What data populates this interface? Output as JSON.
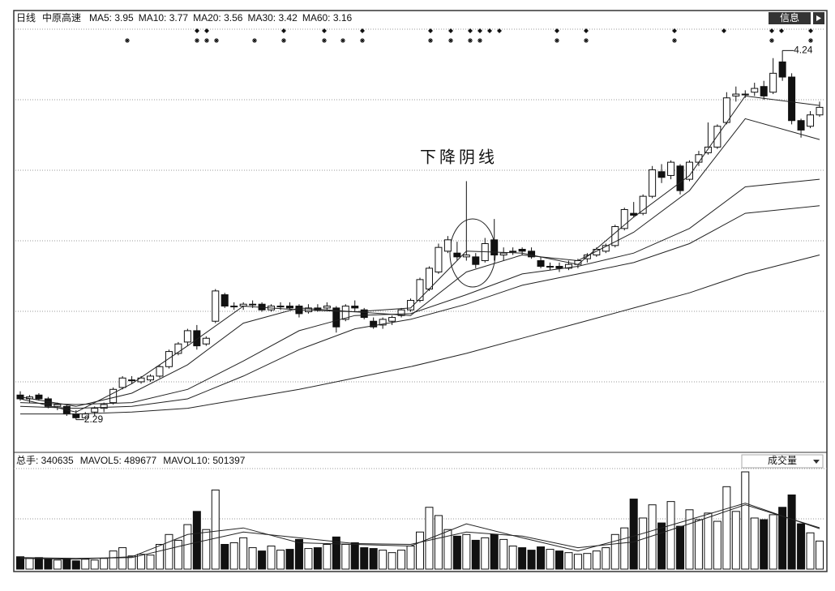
{
  "header": {
    "period": "日线",
    "stock": "中原高速",
    "ma_labels": [
      "MA5: 3.95",
      "MA10: 3.77",
      "MA20: 3.56",
      "MA30: 3.42",
      "MA60: 3.16"
    ]
  },
  "button": "信息",
  "chart_data": [
    {
      "type": "candlestick",
      "ylim": [
        2.13,
        4.37
      ],
      "max_label": "4.24",
      "min_label": "2.29",
      "annotation": "下降阴线",
      "candles": [
        [
          2.42,
          2.44,
          2.39,
          2.4
        ],
        [
          2.4,
          2.42,
          2.38,
          2.41
        ],
        [
          2.42,
          2.43,
          2.39,
          2.4
        ],
        [
          2.4,
          2.41,
          2.35,
          2.36
        ],
        [
          2.36,
          2.38,
          2.34,
          2.37
        ],
        [
          2.36,
          2.37,
          2.31,
          2.32
        ],
        [
          2.32,
          2.34,
          2.29,
          2.3
        ],
        [
          2.3,
          2.33,
          2.29,
          2.32
        ],
        [
          2.33,
          2.36,
          2.31,
          2.35
        ],
        [
          2.35,
          2.38,
          2.33,
          2.37
        ],
        [
          2.38,
          2.46,
          2.37,
          2.45
        ],
        [
          2.46,
          2.52,
          2.45,
          2.51
        ],
        [
          2.5,
          2.52,
          2.48,
          2.5
        ],
        [
          2.49,
          2.52,
          2.48,
          2.51
        ],
        [
          2.5,
          2.53,
          2.49,
          2.52
        ],
        [
          2.52,
          2.58,
          2.51,
          2.57
        ],
        [
          2.57,
          2.66,
          2.56,
          2.65
        ],
        [
          2.64,
          2.7,
          2.63,
          2.69
        ],
        [
          2.7,
          2.77,
          2.68,
          2.76
        ],
        [
          2.76,
          2.79,
          2.66,
          2.68
        ],
        [
          2.69,
          2.73,
          2.68,
          2.72
        ],
        [
          2.81,
          2.98,
          2.8,
          2.97
        ],
        [
          2.95,
          2.96,
          2.88,
          2.89
        ],
        [
          2.89,
          2.91,
          2.87,
          2.89
        ],
        [
          2.89,
          2.91,
          2.87,
          2.9
        ],
        [
          2.9,
          2.92,
          2.88,
          2.9
        ],
        [
          2.9,
          2.91,
          2.86,
          2.87
        ],
        [
          2.87,
          2.9,
          2.86,
          2.89
        ],
        [
          2.89,
          2.91,
          2.87,
          2.89
        ],
        [
          2.89,
          2.91,
          2.87,
          2.88
        ],
        [
          2.89,
          2.9,
          2.83,
          2.85
        ],
        [
          2.86,
          2.9,
          2.85,
          2.88
        ],
        [
          2.88,
          2.9,
          2.86,
          2.87
        ],
        [
          2.88,
          2.91,
          2.87,
          2.89
        ],
        [
          2.88,
          2.89,
          2.75,
          2.78
        ],
        [
          2.82,
          2.9,
          2.81,
          2.89
        ],
        [
          2.89,
          2.92,
          2.86,
          2.88
        ],
        [
          2.87,
          2.88,
          2.82,
          2.83
        ],
        [
          2.81,
          2.83,
          2.77,
          2.78
        ],
        [
          2.79,
          2.83,
          2.77,
          2.82
        ],
        [
          2.81,
          2.84,
          2.79,
          2.83
        ],
        [
          2.84,
          2.88,
          2.83,
          2.87
        ],
        [
          2.87,
          2.93,
          2.86,
          2.92
        ],
        [
          2.92,
          3.04,
          2.91,
          3.03
        ],
        [
          2.98,
          3.1,
          2.97,
          3.09
        ],
        [
          3.07,
          3.22,
          3.06,
          3.2
        ],
        [
          3.18,
          3.26,
          3.17,
          3.24
        ],
        [
          3.17,
          3.23,
          3.13,
          3.15
        ],
        [
          3.15,
          3.55,
          3.13,
          3.16
        ],
        [
          3.15,
          3.17,
          3.09,
          3.11
        ],
        [
          3.13,
          3.25,
          3.12,
          3.22
        ],
        [
          3.24,
          3.35,
          3.13,
          3.16
        ],
        [
          3.16,
          3.2,
          3.13,
          3.17
        ],
        [
          3.18,
          3.2,
          3.16,
          3.18
        ],
        [
          3.19,
          3.2,
          3.16,
          3.18
        ],
        [
          3.18,
          3.2,
          3.14,
          3.15
        ],
        [
          3.13,
          3.15,
          3.09,
          3.1
        ],
        [
          3.1,
          3.12,
          3.08,
          3.1
        ],
        [
          3.1,
          3.12,
          3.07,
          3.09
        ],
        [
          3.09,
          3.13,
          3.08,
          3.11
        ],
        [
          3.11,
          3.14,
          3.09,
          3.13
        ],
        [
          3.14,
          3.17,
          3.12,
          3.16
        ],
        [
          3.16,
          3.2,
          3.15,
          3.19
        ],
        [
          3.18,
          3.22,
          3.17,
          3.21
        ],
        [
          3.21,
          3.32,
          3.2,
          3.31
        ],
        [
          3.3,
          3.41,
          3.29,
          3.4
        ],
        [
          3.38,
          3.44,
          3.36,
          3.37
        ],
        [
          3.38,
          3.48,
          3.37,
          3.47
        ],
        [
          3.47,
          3.63,
          3.46,
          3.61
        ],
        [
          3.6,
          3.64,
          3.54,
          3.57
        ],
        [
          3.58,
          3.66,
          3.56,
          3.65
        ],
        [
          3.63,
          3.64,
          3.48,
          3.5
        ],
        [
          3.56,
          3.66,
          3.55,
          3.65
        ],
        [
          3.65,
          3.71,
          3.63,
          3.69
        ],
        [
          3.7,
          3.86,
          3.69,
          3.73
        ],
        [
          3.73,
          3.85,
          3.72,
          3.84
        ],
        [
          3.86,
          4.02,
          3.85,
          3.99
        ],
        [
          4.0,
          4.05,
          3.97,
          4.01
        ],
        [
          4.01,
          4.03,
          3.99,
          4.01
        ],
        [
          4.02,
          4.07,
          4.0,
          4.04
        ],
        [
          4.05,
          4.08,
          3.98,
          4.0
        ],
        [
          4.02,
          4.2,
          4.01,
          4.12
        ],
        [
          4.18,
          4.24,
          4.08,
          4.1
        ],
        [
          4.1,
          4.12,
          3.85,
          3.87
        ],
        [
          3.87,
          3.88,
          3.78,
          3.82
        ],
        [
          3.84,
          3.92,
          3.83,
          3.9
        ],
        [
          3.9,
          3.97,
          3.89,
          3.94
        ]
      ],
      "ma_lines": [
        {
          "x": [
            0,
            6,
            12,
            18,
            24,
            30,
            36,
            42,
            48,
            54,
            60,
            66,
            72,
            78,
            86
          ],
          "values": [
            2.4,
            2.33,
            2.48,
            2.68,
            2.89,
            2.87,
            2.86,
            2.88,
            3.18,
            3.17,
            3.11,
            3.36,
            3.58,
            4.0,
            3.95
          ]
        },
        {
          "x": [
            0,
            6,
            12,
            18,
            24,
            30,
            36,
            42,
            48,
            54,
            60,
            66,
            72,
            78,
            86
          ],
          "values": [
            2.41,
            2.36,
            2.43,
            2.58,
            2.8,
            2.88,
            2.86,
            2.84,
            3.07,
            3.16,
            3.13,
            3.28,
            3.5,
            3.88,
            3.77
          ]
        },
        {
          "x": [
            0,
            6,
            12,
            18,
            24,
            30,
            36,
            42,
            48,
            54,
            60,
            66,
            72,
            78,
            86
          ],
          "values": [
            2.38,
            2.37,
            2.38,
            2.45,
            2.6,
            2.76,
            2.84,
            2.85,
            2.95,
            3.06,
            3.1,
            3.17,
            3.3,
            3.52,
            3.56
          ]
        },
        {
          "x": [
            0,
            6,
            12,
            18,
            24,
            30,
            36,
            42,
            48,
            54,
            60,
            66,
            72,
            78,
            86
          ],
          "values": [
            2.36,
            2.35,
            2.36,
            2.4,
            2.52,
            2.66,
            2.77,
            2.82,
            2.9,
            3.0,
            3.06,
            3.12,
            3.22,
            3.38,
            3.42
          ]
        },
        {
          "x": [
            0,
            6,
            12,
            18,
            24,
            30,
            36,
            42,
            48,
            54,
            60,
            66,
            72,
            78,
            86
          ],
          "values": [
            2.32,
            2.32,
            2.33,
            2.35,
            2.4,
            2.45,
            2.51,
            2.57,
            2.64,
            2.72,
            2.8,
            2.88,
            2.96,
            3.06,
            3.16
          ]
        }
      ]
    },
    {
      "type": "bar",
      "header": [
        "总手: 340635",
        "MAVOL5: 489677",
        "MAVOL10: 501397"
      ],
      "indicator": "成交量",
      "ylim": [
        0,
        1200000
      ],
      "values": [
        150000,
        130000,
        140000,
        120000,
        110000,
        130000,
        100000,
        120000,
        110000,
        130000,
        220000,
        260000,
        160000,
        180000,
        170000,
        300000,
        420000,
        350000,
        540000,
        700000,
        480000,
        960000,
        300000,
        320000,
        380000,
        260000,
        220000,
        280000,
        230000,
        240000,
        360000,
        250000,
        260000,
        300000,
        390000,
        300000,
        320000,
        260000,
        250000,
        230000,
        200000,
        230000,
        280000,
        450000,
        750000,
        650000,
        480000,
        400000,
        420000,
        350000,
        380000,
        420000,
        360000,
        280000,
        260000,
        230000,
        270000,
        240000,
        220000,
        200000,
        180000,
        190000,
        220000,
        260000,
        420000,
        500000,
        850000,
        620000,
        780000,
        560000,
        820000,
        520000,
        720000,
        600000,
        680000,
        580000,
        1000000,
        700000,
        1180000,
        620000,
        600000,
        660000,
        750000,
        900000,
        550000,
        440000,
        340635
      ],
      "ma_lines": [
        {
          "x": [
            0,
            6,
            12,
            18,
            24,
            30,
            36,
            42,
            48,
            54,
            60,
            66,
            72,
            78,
            86
          ],
          "values": [
            130000,
            120000,
            150000,
            420000,
            500000,
            320000,
            300000,
            280000,
            550000,
            380000,
            220000,
            400000,
            600000,
            800000,
            489677
          ]
        },
        {
          "x": [
            0,
            6,
            12,
            18,
            24,
            30,
            36,
            42,
            48,
            54,
            60,
            66,
            72,
            78,
            86
          ],
          "values": [
            140000,
            130000,
            140000,
            300000,
            450000,
            380000,
            310000,
            300000,
            450000,
            400000,
            260000,
            330000,
            550000,
            780000,
            501397
          ]
        }
      ]
    }
  ]
}
